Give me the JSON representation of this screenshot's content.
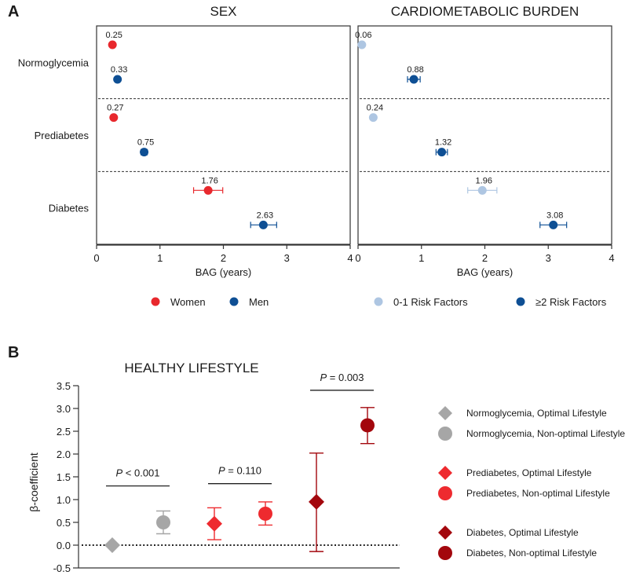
{
  "panel_a_label": "A",
  "panel_b_label": "B",
  "chart_data": [
    {
      "type": "scatter",
      "subtype": "forest-plot",
      "title": "SEX",
      "xlabel": "BAG (years)",
      "xlim": [
        0,
        4
      ],
      "xticks": [
        "0",
        "1",
        "2",
        "3",
        "4"
      ],
      "groups": [
        "Normoglycemia",
        "Prediabetes",
        "Diabetes"
      ],
      "legend": [
        {
          "name": "Women",
          "color": "#e8282d"
        },
        {
          "name": "Men",
          "color": "#0e4f94"
        }
      ],
      "series": [
        {
          "name": "Women",
          "color": "#e8282d",
          "values": [
            0.25,
            0.27,
            1.76
          ],
          "ci_low": [
            null,
            null,
            1.53
          ],
          "ci_high": [
            null,
            null,
            1.99
          ],
          "labels": [
            "0.25",
            "0.27",
            "1.76"
          ]
        },
        {
          "name": "Men",
          "color": "#0e4f94",
          "values": [
            0.33,
            0.75,
            2.63
          ],
          "ci_low": [
            null,
            0.7,
            2.43
          ],
          "ci_high": [
            null,
            0.8,
            2.84
          ],
          "labels": [
            "0.33",
            "0.75",
            "2.63"
          ]
        }
      ]
    },
    {
      "type": "scatter",
      "subtype": "forest-plot",
      "title": "CARDIOMETABOLIC BURDEN",
      "xlabel": "BAG (years)",
      "xlim": [
        0,
        4
      ],
      "xticks": [
        "0",
        "1",
        "2",
        "3",
        "4"
      ],
      "groups": [
        "Normoglycemia",
        "Prediabetes",
        "Diabetes"
      ],
      "legend": [
        {
          "name": "0-1 Risk Factors",
          "color": "#aec6e2"
        },
        {
          "name": "≥2 Risk Factors",
          "color": "#0e4f94"
        }
      ],
      "series": [
        {
          "name": "0-1 Risk Factors",
          "color": "#aec6e2",
          "values": [
            0.06,
            0.24,
            1.96
          ],
          "ci_low": [
            null,
            null,
            1.73
          ],
          "ci_high": [
            null,
            null,
            2.19
          ],
          "labels": [
            "0.06",
            "0.24",
            "1.96"
          ]
        },
        {
          "name": "≥2 Risk Factors",
          "color": "#0e4f94",
          "values": [
            0.88,
            1.32,
            3.08
          ],
          "ci_low": [
            0.78,
            1.23,
            2.87
          ],
          "ci_high": [
            0.98,
            1.41,
            3.29
          ],
          "labels": [
            "0.88",
            "1.32",
            "3.08"
          ]
        }
      ]
    },
    {
      "type": "scatter",
      "subtype": "point-with-ci",
      "title": "HEALTHY LIFESTYLE",
      "ylabel": "β-coefficient",
      "ylim": [
        -0.5,
        3.5
      ],
      "yticks": [
        "3.5",
        "3.0",
        "2.5",
        "2.0",
        "1.5",
        "1.0",
        "0.5",
        "0.0",
        "-0.5"
      ],
      "reference_line": 0,
      "points": [
        {
          "name": "Normoglycemia, Optimal Lifestyle",
          "shape": "diamond",
          "color": "#a6a6a6",
          "value": 0.0,
          "ci_low": null,
          "ci_high": null
        },
        {
          "name": "Normoglycemia, Non-optimal Lifestyle",
          "shape": "circle",
          "color": "#a6a6a6",
          "value": 0.5,
          "ci_low": 0.25,
          "ci_high": 0.75
        },
        {
          "name": "Prediabetes, Optimal Lifestyle",
          "shape": "diamond",
          "color": "#ee2a2f",
          "value": 0.47,
          "ci_low": 0.12,
          "ci_high": 0.82
        },
        {
          "name": "Prediabetes, Non-optimal Lifestyle",
          "shape": "circle",
          "color": "#ee2a2f",
          "value": 0.69,
          "ci_low": 0.44,
          "ci_high": 0.95
        },
        {
          "name": "Diabetes, Optimal Lifestyle",
          "shape": "diamond",
          "color": "#a3070d",
          "value": 0.95,
          "ci_low": -0.14,
          "ci_high": 2.02
        },
        {
          "name": "Diabetes, Non-optimal Lifestyle",
          "shape": "circle",
          "color": "#a3070d",
          "value": 2.63,
          "ci_low": 2.23,
          "ci_high": 3.02
        }
      ],
      "comparisons": [
        {
          "label_italic": "P",
          "label_rest": " < 0.001",
          "from": 0,
          "to": 1,
          "y": 1.3
        },
        {
          "label_italic": "P",
          "label_rest": " = 0.110",
          "from": 2,
          "to": 3,
          "y": 1.35
        },
        {
          "label_italic": "P",
          "label_rest": " = 0.003",
          "from": 4,
          "to": 5,
          "y": 3.4
        }
      ],
      "legend": [
        {
          "name": "Normoglycemia, Optimal Lifestyle",
          "shape": "diamond",
          "color": "#a6a6a6"
        },
        {
          "name": "Normoglycemia, Non-optimal Lifestyle",
          "shape": "circle",
          "color": "#a6a6a6"
        },
        {
          "name": "Prediabetes, Optimal Lifestyle",
          "shape": "diamond",
          "color": "#ee2a2f"
        },
        {
          "name": "Prediabetes, Non-optimal Lifestyle",
          "shape": "circle",
          "color": "#ee2a2f"
        },
        {
          "name": "Diabetes, Optimal Lifestyle",
          "shape": "diamond",
          "color": "#a3070d"
        },
        {
          "name": "Diabetes, Non-optimal Lifestyle",
          "shape": "circle",
          "color": "#a3070d"
        }
      ]
    }
  ]
}
